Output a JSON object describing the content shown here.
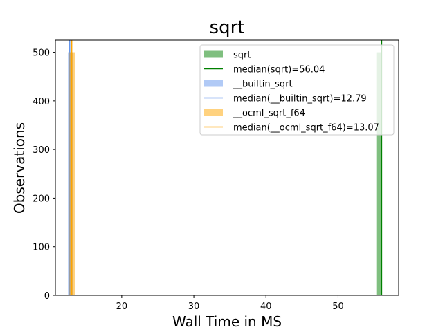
{
  "chart_data": {
    "type": "histogram",
    "title": "sqrt",
    "xlabel": "Wall Time in MS",
    "ylabel": "Observations",
    "xlim": [
      10.8,
      58.4
    ],
    "ylim": [
      0,
      525
    ],
    "xticks": [
      20,
      30,
      40,
      50
    ],
    "yticks": [
      0,
      100,
      200,
      300,
      400,
      500
    ],
    "legend_position": "upper right",
    "series": [
      {
        "name": "sqrt",
        "kind": "bar",
        "color": "#008000",
        "opacity": 0.5,
        "bins": [
          {
            "x0": 55.3,
            "x1": 56.05,
            "count": 500
          }
        ]
      },
      {
        "name": "median(sqrt)=56.04",
        "kind": "vline",
        "color": "#008000",
        "x": 56.04
      },
      {
        "name": "__builtin_sqrt",
        "kind": "bar",
        "color": "#6495ED",
        "opacity": 0.5,
        "bins": [
          {
            "x0": 12.55,
            "x1": 13.2,
            "count": 500
          }
        ]
      },
      {
        "name": "median(__builtin_sqrt)=12.79",
        "kind": "vline",
        "color": "#6495ED",
        "x": 12.79
      },
      {
        "name": "__ocml_sqrt_f64",
        "kind": "bar",
        "color": "#FFA500",
        "opacity": 0.5,
        "bins": [
          {
            "x0": 12.75,
            "x1": 13.5,
            "count": 500
          }
        ]
      },
      {
        "name": "median(__ocml_sqrt_f64)=13.07",
        "kind": "vline",
        "color": "#FFA500",
        "x": 13.07
      }
    ]
  }
}
